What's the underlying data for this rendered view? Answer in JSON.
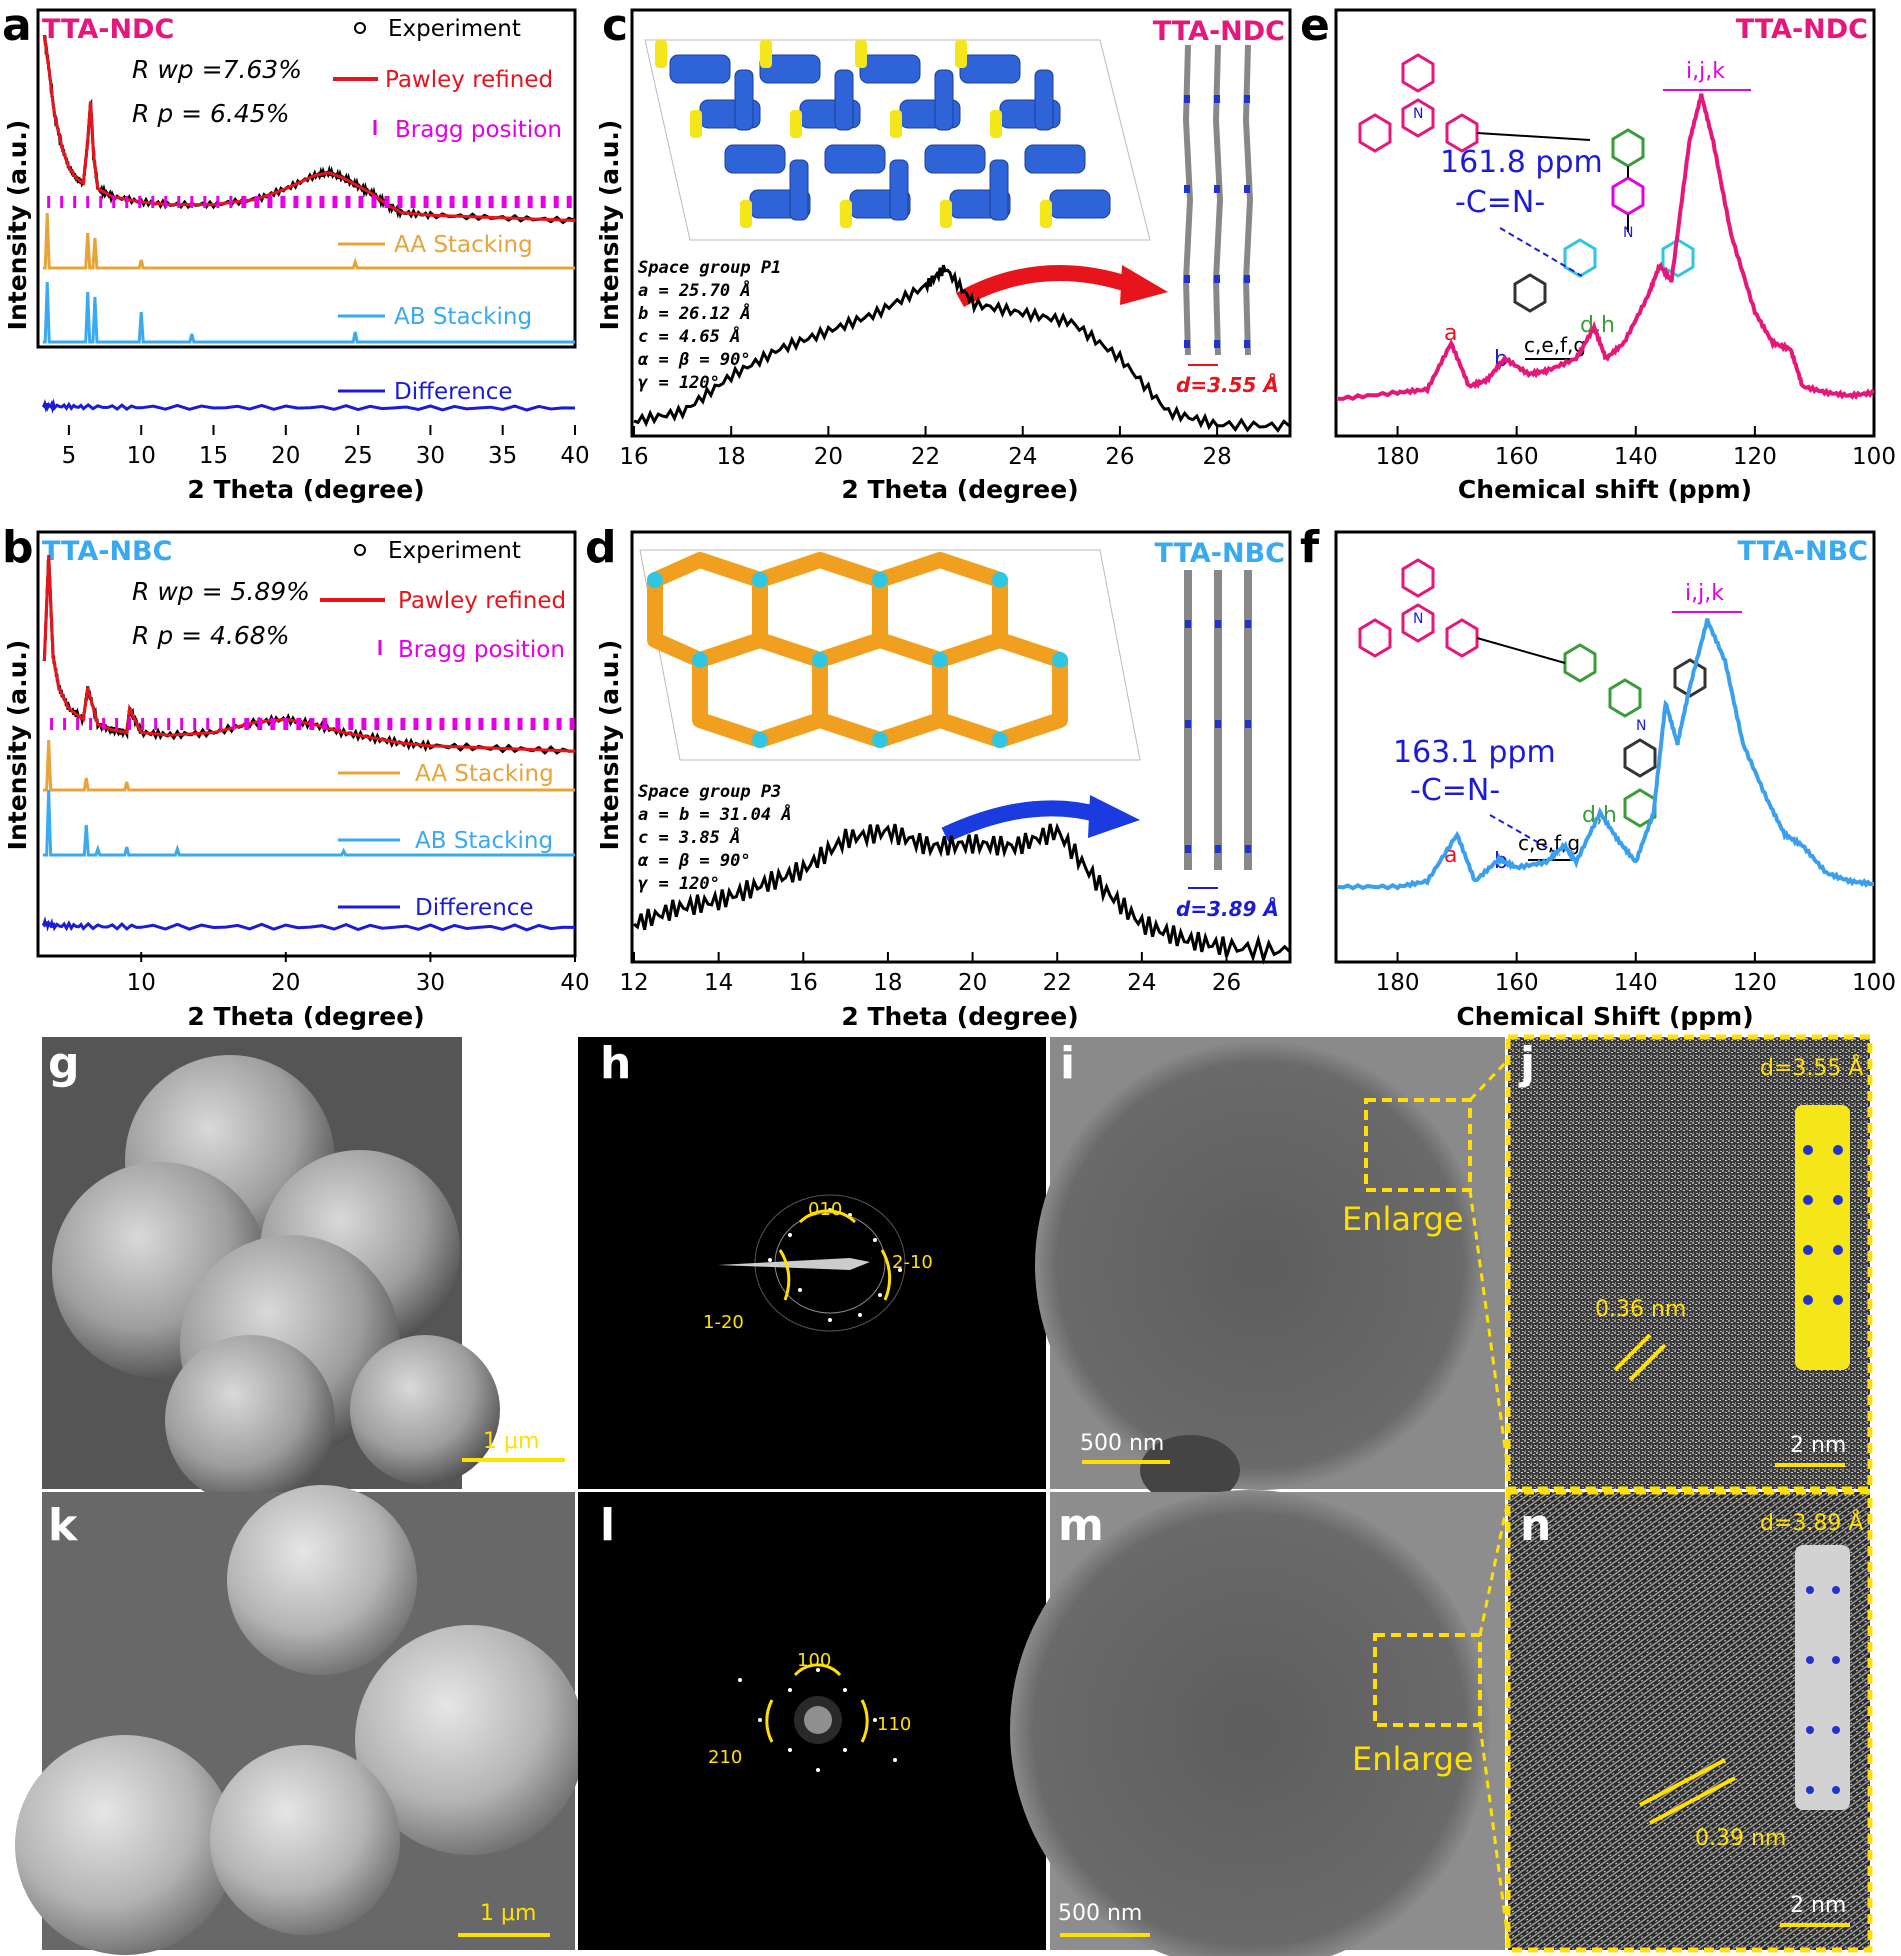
{
  "panels": {
    "a": "a",
    "b": "b",
    "c": "c",
    "d": "d",
    "e": "e",
    "f": "f",
    "g": "g",
    "h": "h",
    "i": "i",
    "j": "j",
    "k": "k",
    "l": "l",
    "m": "m",
    "n": "n"
  },
  "colors": {
    "pink": "#e6177a",
    "red": "#e8141c",
    "magenta": "#e600e6",
    "orange": "#e8a43a",
    "skyblue": "#3aaaf0",
    "blue": "#1c1cd6",
    "yellow": "#ffe000",
    "nmrBlue": "#3aa0ee"
  },
  "chart_data": [
    {
      "panel": "a",
      "type": "line",
      "title": "TTA-NDC",
      "xlabel": "2 Theta (degree)",
      "ylabel": "Intensity (a.u.)",
      "xlim": [
        3,
        40
      ],
      "xticks": [
        "5",
        "10",
        "15",
        "20",
        "25",
        "30",
        "35",
        "40"
      ],
      "annotations": [
        "R wp =7.63%",
        "R p = 6.45%"
      ],
      "legend": [
        "Experiment",
        "Pawley refined",
        "Bragg position",
        "AA Stacking",
        "AB Stacking",
        "Difference"
      ],
      "series": [
        {
          "name": "Experiment",
          "x": [
            3.3,
            3.6,
            4,
            4.5,
            5,
            5.5,
            6,
            6.3,
            6.5,
            6.7,
            7,
            8,
            10,
            12,
            15,
            18,
            20,
            22,
            23,
            24,
            25,
            26,
            27,
            28,
            30,
            35,
            40
          ],
          "y": [
            1.0,
            0.88,
            0.7,
            0.58,
            0.5,
            0.46,
            0.44,
            0.6,
            0.75,
            0.55,
            0.42,
            0.39,
            0.37,
            0.36,
            0.36,
            0.38,
            0.42,
            0.47,
            0.48,
            0.46,
            0.43,
            0.4,
            0.36,
            0.33,
            0.32,
            0.31,
            0.3
          ]
        },
        {
          "name": "AA Stacking",
          "peaks_x": [
            3.5,
            6.3,
            6.8,
            10.0,
            24.8
          ]
        },
        {
          "name": "AB Stacking",
          "peaks_x": [
            3.5,
            6.3,
            6.8,
            10.0,
            13.5,
            24.8
          ]
        }
      ]
    },
    {
      "panel": "b",
      "type": "line",
      "title": "TTA-NBC",
      "xlabel": "2 Theta (degree)",
      "ylabel": "Intensity (a.u.)",
      "xlim": [
        3,
        40
      ],
      "xticks": [
        "10",
        "20",
        "30",
        "40"
      ],
      "annotations": [
        "R wp = 5.89%",
        "R p = 4.68%"
      ],
      "legend": [
        "Experiment",
        "Pawley refined",
        "Bragg position",
        "AA Stacking",
        "AB Stacking",
        "Difference"
      ],
      "series": [
        {
          "name": "Experiment",
          "x": [
            3.3,
            3.6,
            3.9,
            4.3,
            5,
            6,
            6.3,
            7,
            8,
            9,
            9.2,
            10,
            12,
            15,
            18,
            20,
            22,
            24,
            26,
            28,
            30,
            35,
            40
          ],
          "y": [
            0.6,
            1.0,
            0.62,
            0.5,
            0.42,
            0.38,
            0.5,
            0.36,
            0.34,
            0.33,
            0.42,
            0.33,
            0.32,
            0.33,
            0.37,
            0.38,
            0.36,
            0.33,
            0.31,
            0.29,
            0.28,
            0.27,
            0.26
          ]
        },
        {
          "name": "AA Stacking",
          "peaks_x": [
            3.6,
            6.2,
            9.0
          ]
        },
        {
          "name": "AB Stacking",
          "peaks_x": [
            3.6,
            6.2,
            7.0,
            9.0,
            12.5,
            24.0
          ]
        }
      ]
    },
    {
      "panel": "c",
      "type": "line",
      "title": "TTA-NDC",
      "xlabel": "2 Theta (degree)",
      "ylabel": "Intensity (a.u.)",
      "xlim": [
        16,
        29.5
      ],
      "xticks": [
        "16",
        "18",
        "20",
        "22",
        "24",
        "26",
        "28"
      ],
      "annotations": [
        "Space group P1",
        "a = 25.70 Å",
        "b = 26.12 Å",
        "c = 4.65 Å",
        "α = β = 90°",
        "γ = 120°",
        "d=3.55 Å"
      ],
      "series": [
        {
          "name": "",
          "x": [
            16,
            17,
            18,
            19,
            20,
            21,
            22,
            22.4,
            23,
            24,
            25,
            26,
            27,
            28,
            29.5
          ],
          "y": [
            0.05,
            0.1,
            0.3,
            0.45,
            0.55,
            0.65,
            0.8,
            0.9,
            0.7,
            0.65,
            0.6,
            0.4,
            0.1,
            0.03,
            0.02
          ]
        }
      ]
    },
    {
      "panel": "d",
      "type": "line",
      "title": "TTA-NBC",
      "xlabel": "2 Theta (degree)",
      "ylabel": "Intensity (a.u.)",
      "xlim": [
        12,
        27.5
      ],
      "xticks": [
        "12",
        "14",
        "16",
        "18",
        "20",
        "22",
        "24",
        "26"
      ],
      "annotations": [
        "Space group P3",
        "a = b = 31.04 Å",
        "c = 3.85 Å",
        "α = β = 90°",
        "γ = 120°",
        "d=3.89 Å"
      ],
      "series": [
        {
          "name": "",
          "x": [
            12,
            13,
            14,
            15,
            16,
            17,
            18,
            19,
            20,
            21,
            22,
            23,
            24,
            25,
            26,
            27.5
          ],
          "y": [
            0.2,
            0.3,
            0.35,
            0.45,
            0.55,
            0.75,
            0.8,
            0.7,
            0.72,
            0.7,
            0.8,
            0.45,
            0.2,
            0.1,
            0.05,
            0.02
          ]
        }
      ]
    },
    {
      "panel": "e",
      "type": "line",
      "title": "TTA-NDC",
      "xlabel": "Chemical shift (ppm)",
      "ylabel": "",
      "xlim": [
        190,
        100
      ],
      "xticks": [
        "180",
        "160",
        "140",
        "120",
        "100"
      ],
      "annotations": [
        "161.8 ppm",
        "-C=N-",
        "a",
        "b",
        "c,e,f,g",
        "d,h",
        "i,j,k"
      ],
      "series": [
        {
          "name": "",
          "x": [
            190,
            180,
            175,
            171,
            168,
            165,
            162,
            158,
            155,
            150,
            147,
            145,
            142,
            138,
            136,
            134,
            131,
            129,
            127,
            124,
            120,
            117,
            114,
            112,
            108,
            104,
            100
          ],
          "y": [
            0.02,
            0.04,
            0.05,
            0.2,
            0.06,
            0.08,
            0.15,
            0.1,
            0.11,
            0.15,
            0.25,
            0.15,
            0.2,
            0.35,
            0.45,
            0.4,
            0.85,
            1.0,
            0.85,
            0.55,
            0.3,
            0.2,
            0.18,
            0.06,
            0.04,
            0.03,
            0.04
          ]
        }
      ]
    },
    {
      "panel": "f",
      "type": "line",
      "title": "TTA-NBC",
      "xlabel": "Chemical Shift (ppm)",
      "ylabel": "",
      "xlim": [
        190,
        100
      ],
      "xticks": [
        "180",
        "160",
        "140",
        "120",
        "100"
      ],
      "annotations": [
        "163.1 ppm",
        "-C=N-",
        "a",
        "b",
        "c,e,f,g",
        "d,h",
        "i,j,k"
      ],
      "series": [
        {
          "name": "",
          "x": [
            190,
            180,
            175,
            170,
            167,
            163,
            160,
            155,
            152,
            150,
            146,
            143,
            140,
            137,
            135,
            133,
            131,
            128,
            125,
            122,
            118,
            115,
            112,
            108,
            104,
            100
          ],
          "y": [
            0.03,
            0.03,
            0.05,
            0.22,
            0.05,
            0.13,
            0.1,
            0.12,
            0.18,
            0.12,
            0.3,
            0.2,
            0.12,
            0.3,
            0.7,
            0.55,
            0.75,
            1.0,
            0.85,
            0.55,
            0.35,
            0.22,
            0.18,
            0.08,
            0.05,
            0.04
          ]
        }
      ]
    }
  ],
  "images": {
    "h": {
      "labels": [
        "010",
        "2-10",
        "1-20"
      ]
    },
    "i": {
      "scale": "500 nm",
      "enlarge": "Enlarge"
    },
    "j": {
      "d": "d=3.55 Å",
      "spacing": "0.36 nm",
      "scale": "2 nm"
    },
    "g": {
      "scale": "1 μm"
    },
    "l": {
      "labels": [
        "100",
        "110",
        "210"
      ]
    },
    "m": {
      "scale": "500 nm",
      "enlarge": "Enlarge"
    },
    "n": {
      "d": "d=3.89 Å",
      "spacing": "0.39 nm",
      "scale": "2 nm"
    },
    "k": {
      "scale": "1 μm"
    }
  },
  "structure_labels": {
    "triazine": "N",
    "amine": "N"
  }
}
